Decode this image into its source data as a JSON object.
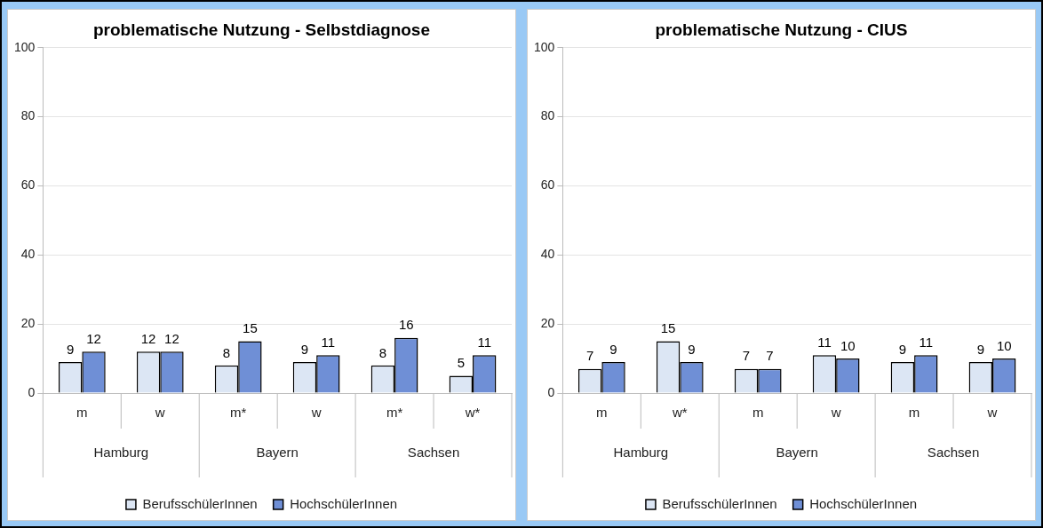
{
  "chart_data": [
    {
      "type": "bar",
      "title": "problematische Nutzung - Selbstdiagnose",
      "categories": [
        "m",
        "w",
        "m*",
        "w",
        "m*",
        "w*"
      ],
      "series": [
        {
          "name": "BerufsschülerInnen",
          "color": "#dce6f4",
          "values": [
            9,
            12,
            8,
            9,
            8,
            5
          ]
        },
        {
          "name": "HochschülerInnen",
          "color": "#6f8fd6",
          "values": [
            12,
            12,
            15,
            11,
            16,
            11
          ]
        }
      ],
      "annotations": [
        "Hamburg",
        "Bayern",
        "Sachsen"
      ],
      "ylim": [
        0,
        100
      ],
      "yticks": [
        0,
        20,
        40,
        60,
        80,
        100
      ],
      "grid": "y",
      "legend": "bottom",
      "data_labels": true
    },
    {
      "type": "bar",
      "title": "problematische Nutzung - CIUS",
      "categories": [
        "m",
        "w*",
        "m",
        "w",
        "m",
        "w"
      ],
      "series": [
        {
          "name": "BerufsschülerInnen",
          "color": "#dce6f4",
          "values": [
            7,
            15,
            7,
            11,
            9,
            9
          ]
        },
        {
          "name": "HochschülerInnen",
          "color": "#6f8fd6",
          "values": [
            9,
            9,
            7,
            10,
            11,
            10
          ]
        }
      ],
      "annotations": [
        "Hamburg",
        "Bayern",
        "Sachsen"
      ],
      "ylim": [
        0,
        100
      ],
      "yticks": [
        0,
        20,
        40,
        60,
        80,
        100
      ],
      "grid": "y",
      "legend": "bottom",
      "data_labels": true
    }
  ]
}
